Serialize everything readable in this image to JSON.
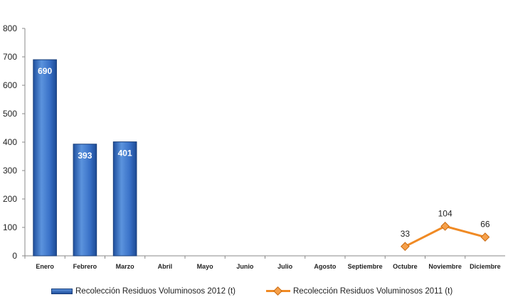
{
  "chart_data": {
    "type": "bar",
    "categories": [
      "Enero",
      "Febrero",
      "Marzo",
      "Abril",
      "Mayo",
      "Junio",
      "Julio",
      "Agosto",
      "Septiembre",
      "Octubre",
      "Noviembre",
      "Diciembre"
    ],
    "ylim": [
      0,
      800
    ],
    "yticks": [
      0,
      100,
      200,
      300,
      400,
      500,
      600,
      700,
      800
    ],
    "grid": false,
    "legend_position": "bottom",
    "series": [
      {
        "name": "Recolección Residuos Voluminosos 2012 (t)",
        "kind": "bar",
        "color": "#2f67c0",
        "values": [
          690,
          393,
          401,
          null,
          null,
          null,
          null,
          null,
          null,
          null,
          null,
          null
        ],
        "labels": [
          "690",
          "393",
          "401"
        ]
      },
      {
        "name": "Recolección Residuos Voluminosos 2011 (t)",
        "kind": "line",
        "color": "#f08a24",
        "values": [
          null,
          null,
          null,
          null,
          null,
          null,
          null,
          null,
          null,
          33,
          104,
          66
        ],
        "labels": [
          "33",
          "104",
          "66"
        ]
      }
    ]
  }
}
